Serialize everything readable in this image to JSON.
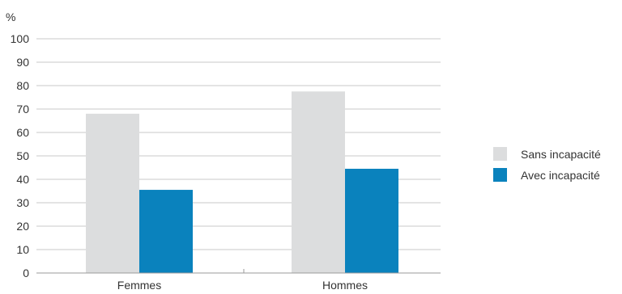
{
  "chart_data": {
    "type": "bar",
    "ylabel": "%",
    "ylim": [
      0,
      100
    ],
    "yticks": [
      0,
      10,
      20,
      30,
      40,
      50,
      60,
      70,
      80,
      90,
      100
    ],
    "categories": [
      "Femmes",
      "Hommes"
    ],
    "series": [
      {
        "name": "Sans incapacité",
        "color": "#dcddde",
        "values": [
          68,
          77.5
        ]
      },
      {
        "name": "Avec incapacité",
        "color": "#0a82bd",
        "values": [
          35.5,
          44.5
        ]
      }
    ],
    "grid": true,
    "legend": "right"
  }
}
